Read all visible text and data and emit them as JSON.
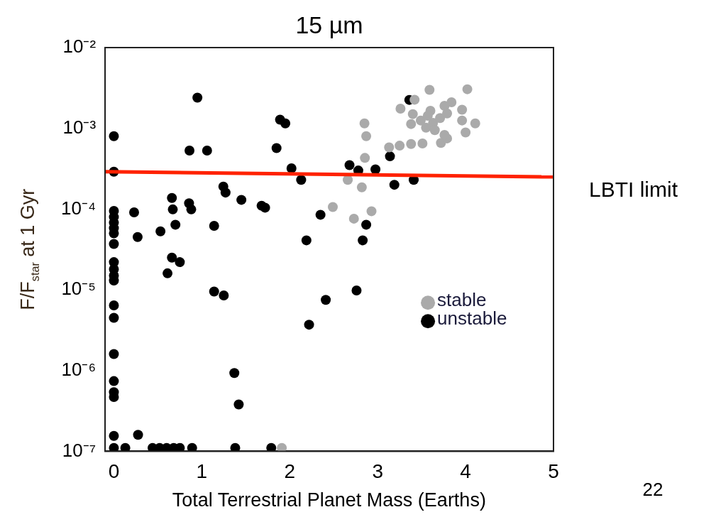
{
  "chart_data": {
    "type": "scatter",
    "title": "15 µm",
    "xlabel": "Total Terrestrial Planet Mass (Earths)",
    "ylabel": "F/F$_{star}$ at 1 Gyr",
    "xlim": [
      -0.1,
      5
    ],
    "xticks": [
      0,
      1,
      2,
      3,
      4,
      5
    ],
    "ylim": [
      1e-07,
      0.01
    ],
    "yticks": [
      {
        "value": 0.01,
        "label": "10⁻²"
      },
      {
        "value": 0.001,
        "label": "10⁻³"
      },
      {
        "value": 0.0001,
        "label": "10⁻⁴"
      },
      {
        "value": 1e-05,
        "label": "10⁻⁵"
      },
      {
        "value": 1e-06,
        "label": "10⁻⁶"
      },
      {
        "value": 1e-07,
        "label": "10⁻⁷"
      }
    ],
    "log": "y",
    "grid": false,
    "legend": "right",
    "marker": "circle",
    "annotations": [
      {
        "text": "LBTI limit",
        "x": 5,
        "y": 0.00025
      },
      "22"
    ],
    "series": [
      {
        "type": "line",
        "color": "#ff2200",
        "marker": "none",
        "x": [
          -0.1,
          5
        ],
        "values": [
          0.00029,
          0.00025
        ]
      },
      {
        "name": "stable",
        "color": "#aaaaaa",
        "x": [
          1.91,
          2.85,
          2.87,
          2.855,
          2.66,
          2.82,
          2.49,
          2.73,
          2.93,
          3.13,
          3.25,
          3.38,
          3.51,
          3.72,
          3.79,
          3.26,
          3.42,
          3.59,
          4.02,
          4.11,
          4.0,
          3.96,
          3.96,
          3.84,
          3.76,
          3.6,
          3.4,
          3.38,
          3.49,
          3.55,
          3.63,
          3.71,
          3.79,
          3.65,
          3.76,
          3.57
        ],
        "values": [
          1.1e-07,
          0.00115,
          0.0008,
          0.00043,
          0.00023,
          0.000186,
          0.000106,
          7.6e-05,
          9.4e-05,
          0.00058,
          0.00061,
          0.00064,
          0.00065,
          0.00066,
          0.00075,
          0.00175,
          0.00226,
          0.003,
          0.00305,
          0.00115,
          0.00089,
          0.00125,
          0.0017,
          0.0021,
          0.0019,
          0.00165,
          0.0015,
          0.00113,
          0.00125,
          0.00102,
          0.00117,
          0.00134,
          0.00153,
          0.00095,
          0.00083,
          0.00143
        ]
      },
      {
        "name": "unstable",
        "color": "#000000",
        "x": [
          0,
          0,
          0.95,
          0.86,
          1.06,
          1.89,
          1.95,
          1.85,
          2.02,
          2.13,
          1.245,
          1.27,
          1.45,
          1.68,
          1.72,
          0.66,
          0.67,
          0.855,
          0.88,
          0.23,
          0.27,
          0.53,
          0.7,
          1.14,
          2.35,
          2.19,
          0,
          0,
          0,
          0,
          0,
          0,
          0,
          0,
          0,
          0,
          0,
          0,
          0,
          0,
          0,
          0,
          0,
          0.275,
          0.66,
          0.75,
          0.61,
          1.14,
          1.25,
          1.37,
          1.42,
          2.22,
          2.41,
          2.76,
          2.83,
          2.68,
          2.78,
          2.975,
          3.14,
          3.19,
          3.41,
          3.36,
          2.87,
          0,
          0.13,
          0.44,
          0.52,
          0.6,
          0.68,
          0.75,
          0.89,
          1.38,
          1.79
        ],
        "values": [
          0.0008,
          0.00029,
          0.0024,
          0.00053,
          0.00053,
          0.00128,
          0.00115,
          0.00057,
          0.00032,
          0.00023,
          0.00019,
          0.00016,
          0.00013,
          0.00011,
          0.000104,
          0.000137,
          9.9e-05,
          0.000118,
          9.9e-05,
          9.1e-05,
          4.5e-05,
          5.3e-05,
          6.4e-05,
          6.2e-05,
          8.5e-05,
          4.1e-05,
          9.5e-05,
          8e-05,
          6.8e-05,
          5.8e-05,
          5e-05,
          3.7e-05,
          2.2e-05,
          1.8e-05,
          1.5e-05,
          1.3e-05,
          6.4e-06,
          4.5e-06,
          1.6e-06,
          7.4e-07,
          5.4e-07,
          4.7e-07,
          1.55e-07,
          1.6e-07,
          2.5e-05,
          2.2e-05,
          1.6e-05,
          9.5e-06,
          8.5e-06,
          9.3e-07,
          3.8e-07,
          3.7e-06,
          7.5e-06,
          9.8e-06,
          4.1e-05,
          0.00035,
          0.0003,
          0.00031,
          0.00045,
          0.0002,
          0.00023,
          0.00225,
          6.4e-05,
          1.1e-07,
          1.1e-07,
          1.1e-07,
          1.1e-07,
          1.1e-07,
          1.1e-07,
          1.1e-07,
          1.1e-07,
          1.1e-07,
          1.1e-07
        ]
      }
    ]
  }
}
